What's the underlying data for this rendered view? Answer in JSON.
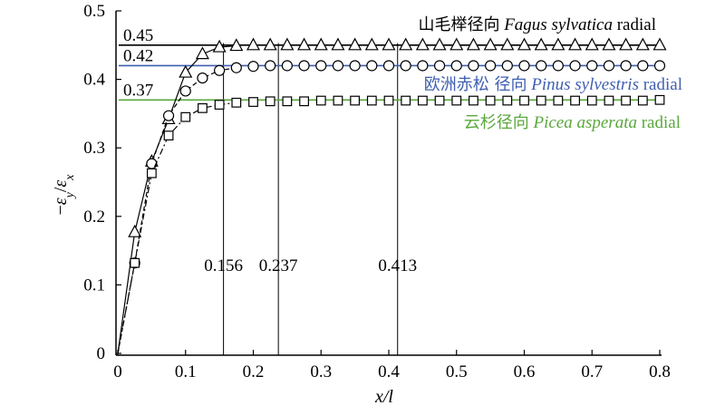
{
  "chart_data": {
    "type": "line",
    "xlabel": "x/l",
    "ylabel": "−εy/εx",
    "ylabel_parts": {
      "minus": "−",
      "eps1": "ε",
      "sub1": "y",
      "slash": "/",
      "eps2": "ε",
      "sub2": "x"
    },
    "xlim": [
      0,
      0.8
    ],
    "ylim": [
      0,
      0.5
    ],
    "x_ticks": [
      "0",
      "0.1",
      "0.2",
      "0.3",
      "0.4",
      "0.5",
      "0.6",
      "0.7",
      "0.8"
    ],
    "y_ticks": [
      "0",
      "0.1",
      "0.2",
      "0.3",
      "0.4",
      "0.5"
    ],
    "grid": false,
    "series": [
      {
        "name": "山毛榉径向 Fagus sylvatica radial",
        "name_cn": "山毛榉径向",
        "name_latin": "Fagus sylvatica",
        "name_suffix": "radial",
        "marker": "triangle",
        "color": "#000000",
        "asymptote": 0.45,
        "asymptote_label": "0.45",
        "asymptote_color": "#000000",
        "x": [
          0,
          0.025,
          0.05,
          0.075,
          0.1,
          0.125,
          0.15,
          0.175,
          0.2,
          0.225,
          0.25,
          0.275,
          0.3,
          0.325,
          0.35,
          0.375,
          0.4,
          0.425,
          0.45,
          0.475,
          0.5,
          0.525,
          0.55,
          0.575,
          0.6,
          0.625,
          0.65,
          0.675,
          0.7,
          0.725,
          0.75,
          0.775,
          0.8
        ],
        "y": [
          0,
          0.177,
          0.28,
          0.342,
          0.41,
          0.437,
          0.447,
          0.449,
          0.45,
          0.45,
          0.45,
          0.45,
          0.45,
          0.45,
          0.45,
          0.45,
          0.45,
          0.45,
          0.45,
          0.45,
          0.45,
          0.45,
          0.45,
          0.45,
          0.45,
          0.45,
          0.45,
          0.45,
          0.45,
          0.45,
          0.45,
          0.45,
          0.45
        ]
      },
      {
        "name": "欧洲赤松 径向 Pinus sylvestris radial",
        "name_cn": "欧洲赤松 径向",
        "name_latin": "Pinus sylvestris",
        "name_suffix": "radial",
        "marker": "circle",
        "color": "#000000",
        "asymptote": 0.42,
        "asymptote_label": "0.42",
        "asymptote_color": "#3f5fb0",
        "x": [
          0,
          0.025,
          0.05,
          0.075,
          0.1,
          0.125,
          0.15,
          0.175,
          0.2,
          0.225,
          0.25,
          0.275,
          0.3,
          0.325,
          0.35,
          0.375,
          0.4,
          0.425,
          0.45,
          0.475,
          0.5,
          0.525,
          0.55,
          0.575,
          0.6,
          0.625,
          0.65,
          0.675,
          0.7,
          0.725,
          0.75,
          0.775,
          0.8
        ],
        "y": [
          0,
          0.132,
          0.277,
          0.347,
          0.383,
          0.402,
          0.413,
          0.417,
          0.419,
          0.42,
          0.42,
          0.42,
          0.42,
          0.42,
          0.42,
          0.42,
          0.42,
          0.42,
          0.42,
          0.42,
          0.42,
          0.42,
          0.42,
          0.42,
          0.42,
          0.42,
          0.42,
          0.42,
          0.42,
          0.42,
          0.42,
          0.42,
          0.42
        ]
      },
      {
        "name": "云杉径向 Picea asperata radial",
        "name_cn": "云杉径向",
        "name_latin": "Picea asperata",
        "name_suffix": "radial",
        "marker": "square",
        "color": "#000000",
        "asymptote": 0.37,
        "asymptote_label": "0.37",
        "asymptote_color": "#5aa83c",
        "x": [
          0,
          0.025,
          0.05,
          0.075,
          0.1,
          0.125,
          0.15,
          0.175,
          0.2,
          0.225,
          0.25,
          0.275,
          0.3,
          0.325,
          0.35,
          0.375,
          0.4,
          0.425,
          0.45,
          0.475,
          0.5,
          0.525,
          0.55,
          0.575,
          0.6,
          0.625,
          0.65,
          0.675,
          0.7,
          0.725,
          0.75,
          0.775,
          0.8
        ],
        "y": [
          0,
          0.132,
          0.263,
          0.318,
          0.345,
          0.358,
          0.363,
          0.366,
          0.367,
          0.368,
          0.368,
          0.368,
          0.369,
          0.369,
          0.369,
          0.369,
          0.369,
          0.369,
          0.369,
          0.369,
          0.369,
          0.369,
          0.369,
          0.369,
          0.369,
          0.369,
          0.369,
          0.369,
          0.369,
          0.369,
          0.369,
          0.369,
          0.37
        ]
      }
    ],
    "vlines": [
      {
        "x": 0.156,
        "label": "0.156"
      },
      {
        "x": 0.237,
        "label": "0.237"
      },
      {
        "x": 0.413,
        "label": "0.413"
      }
    ]
  }
}
